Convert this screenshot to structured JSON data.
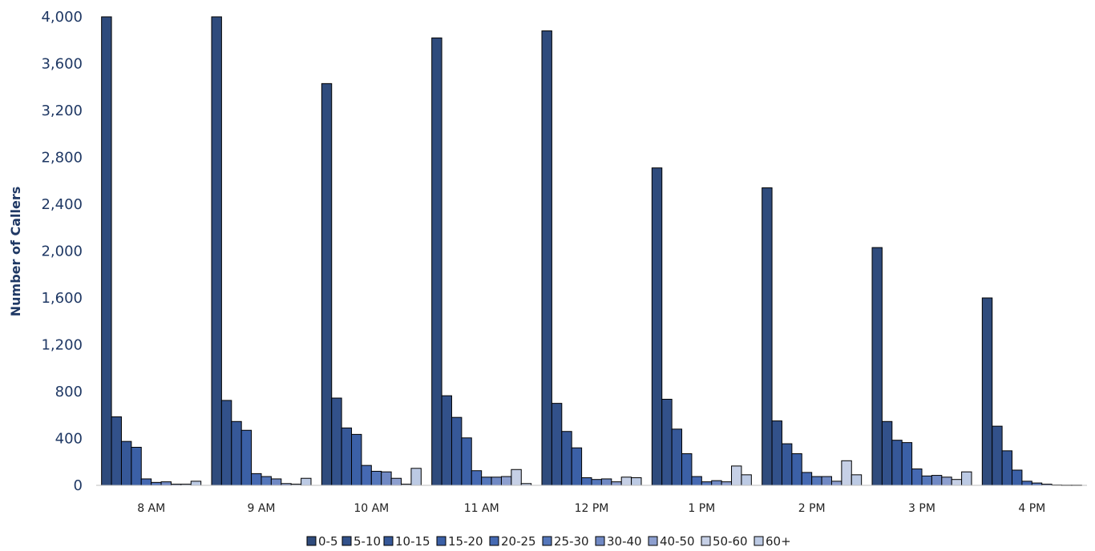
{
  "chart_data": {
    "type": "bar",
    "title": "",
    "xlabel": "",
    "ylabel": "Number of Callers",
    "ylim": [
      0,
      4000
    ],
    "yticks": [
      0,
      400,
      800,
      1200,
      1600,
      2000,
      2400,
      2800,
      3200,
      3600,
      4000
    ],
    "ytick_labels": [
      "0",
      "400",
      "800",
      "1,200",
      "1,600",
      "2,000",
      "2,400",
      "2,800",
      "3,200",
      "3,600",
      "4,000"
    ],
    "grid": false,
    "legend_position": "bottom",
    "categories": [
      "8 AM",
      "9 AM",
      "10 AM",
      "11 AM",
      "12 PM",
      "1 PM",
      "2 PM",
      "3 PM",
      "4 PM"
    ],
    "series": [
      {
        "name": "0-5",
        "color": "#2f4b7c",
        "values": [
          4000,
          4000,
          3430,
          3820,
          3880,
          2710,
          2540,
          2030,
          1600
        ]
      },
      {
        "name": "5-10",
        "color": "#32518a",
        "values": [
          585,
          725,
          745,
          765,
          700,
          735,
          550,
          545,
          505
        ]
      },
      {
        "name": "10-15",
        "color": "#365898",
        "values": [
          375,
          545,
          490,
          580,
          460,
          480,
          355,
          385,
          295
        ]
      },
      {
        "name": "15-20",
        "color": "#3b60a6",
        "values": [
          325,
          470,
          435,
          405,
          320,
          270,
          270,
          365,
          130
        ]
      },
      {
        "name": "20-25",
        "color": "#4569b2",
        "values": [
          55,
          100,
          170,
          125,
          65,
          75,
          110,
          140,
          35
        ]
      },
      {
        "name": "25-30",
        "color": "#5577bb",
        "values": [
          25,
          75,
          120,
          70,
          50,
          30,
          75,
          80,
          20
        ]
      },
      {
        "name": "30-40",
        "color": "#7089c4",
        "values": [
          30,
          55,
          115,
          70,
          55,
          40,
          75,
          85,
          10
        ]
      },
      {
        "name": "40-50",
        "color": "#8d9fcf",
        "values": [
          10,
          15,
          60,
          75,
          30,
          30,
          35,
          70,
          3
        ]
      },
      {
        "name": "50-60",
        "color": "#c6d0e6",
        "values": [
          10,
          10,
          10,
          135,
          70,
          165,
          210,
          50,
          2
        ]
      },
      {
        "name": "60+",
        "color": "#bccae4",
        "values": [
          35,
          60,
          145,
          15,
          65,
          90,
          90,
          115,
          2
        ]
      }
    ]
  }
}
